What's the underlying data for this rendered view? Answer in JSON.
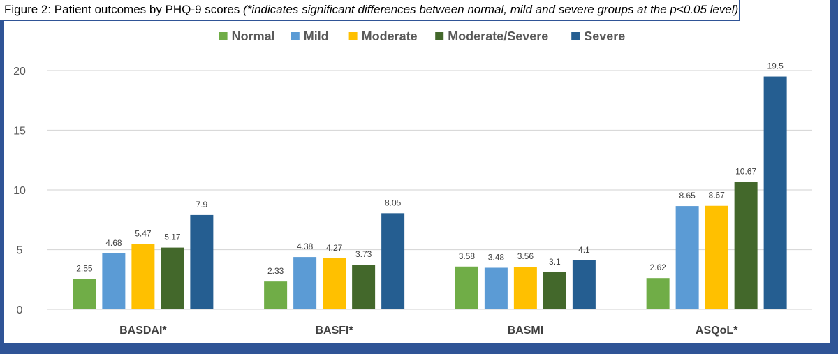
{
  "caption": {
    "prefix": "Figure 2: Patient outcomes by PHQ-9 scores ",
    "note": "(*indicates significant differences between normal, mild and severe groups at the p<0.05 level)"
  },
  "chart_data": {
    "type": "bar",
    "title": "Figure 2: Patient outcomes by PHQ-9 scores (*indicates significant differences between normal, mild and severe groups at the p<0.05 level)",
    "categories": [
      "BASDAI*",
      "BASFI*",
      "BASMI",
      "ASQoL*"
    ],
    "series": [
      {
        "name": "Normal",
        "color": "#70AD47",
        "values": [
          2.55,
          2.33,
          3.58,
          2.62
        ],
        "labels": [
          "2.55",
          "2.33",
          "3.58",
          "2.62"
        ]
      },
      {
        "name": "Mild",
        "color": "#5B9BD5",
        "values": [
          4.68,
          4.38,
          3.48,
          8.65
        ],
        "labels": [
          "4.68",
          "4.38",
          "3.48",
          "8.65"
        ]
      },
      {
        "name": "Moderate",
        "color": "#FFC000",
        "values": [
          5.47,
          4.27,
          3.56,
          8.67
        ],
        "labels": [
          "5.47",
          "4.27",
          "3.56",
          "8.67"
        ]
      },
      {
        "name": "Moderate/Severe",
        "color": "#43682B",
        "values": [
          5.17,
          3.73,
          3.1,
          10.67
        ],
        "labels": [
          "5.17",
          "3.73",
          "3.1",
          "10.67"
        ]
      },
      {
        "name": "Severe",
        "color": "#255E91",
        "values": [
          7.9,
          8.05,
          4.1,
          19.5
        ],
        "labels": [
          "7.9",
          "8.05",
          "4.1",
          "19.5"
        ]
      }
    ],
    "xlabel": "",
    "ylabel": "",
    "ylim": [
      0,
      20
    ],
    "yticks": [
      0,
      5,
      10,
      15,
      20
    ],
    "grid": true,
    "legend_position": "top"
  }
}
